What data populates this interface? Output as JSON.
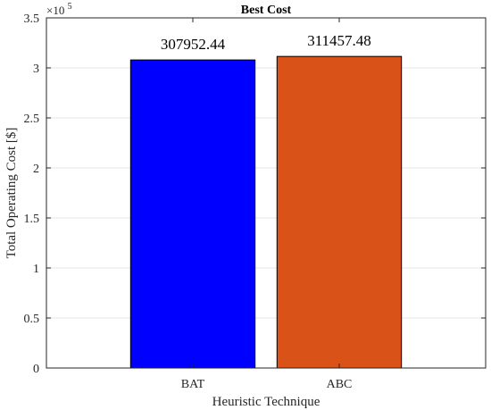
{
  "chart_data": {
    "type": "bar",
    "title": "Best Cost",
    "xlabel": "Heuristic Technique",
    "ylabel": "Total Operating Cost [$]",
    "categories": [
      "BAT",
      "ABC"
    ],
    "values": [
      307952.44,
      311457.48
    ],
    "data_labels": [
      "307952.44",
      "311457.48"
    ],
    "colors": [
      "#0000ff",
      "#d95319"
    ],
    "ylim": [
      0,
      350000
    ],
    "y_ticks": [
      0,
      50000,
      100000,
      150000,
      200000,
      250000,
      300000,
      350000
    ],
    "y_tick_labels": [
      "0",
      "0.5",
      "1",
      "1.5",
      "2",
      "2.5",
      "3",
      "3.5"
    ],
    "y_exponent_base": "×10",
    "y_exponent_power": "5",
    "grid": "horizontal",
    "legend": "none"
  }
}
